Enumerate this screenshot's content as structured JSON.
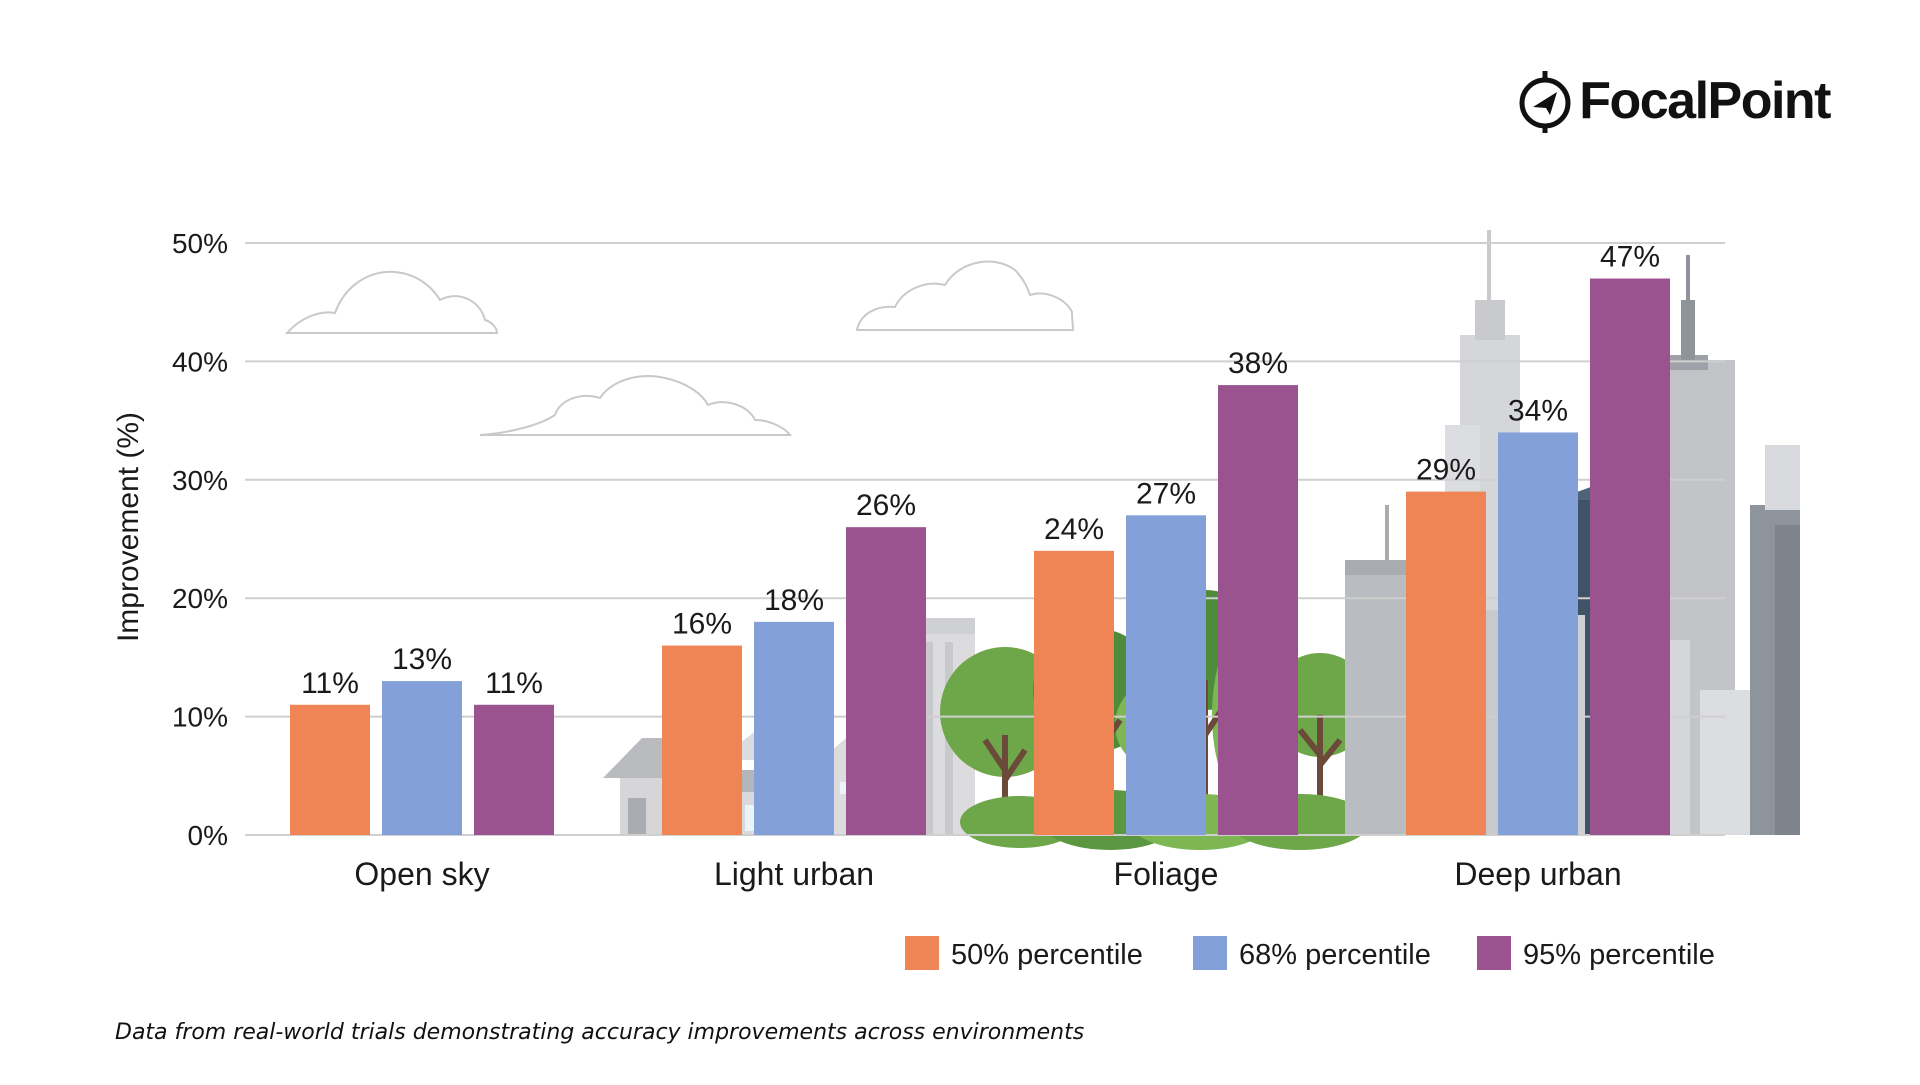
{
  "brand": {
    "name": "FocalPoint",
    "icon": "compass-icon"
  },
  "caption": "Data from real-world trials demonstrating accuracy improvements across environments",
  "colors": {
    "p50": "#ef8454",
    "p68": "#83a1d8",
    "p95": "#9b538f",
    "grid": "#cfcfcf",
    "text": "#1a1a1a"
  },
  "chart_data": {
    "type": "bar",
    "title": "",
    "xlabel": "",
    "ylabel": "Improvement (%)",
    "ylim": [
      0,
      50
    ],
    "yticks": [
      0,
      10,
      20,
      30,
      40,
      50
    ],
    "ytick_labels": [
      "0%",
      "10%",
      "20%",
      "30%",
      "40%",
      "50%"
    ],
    "grid": true,
    "legend_position": "bottom-right",
    "categories": [
      "Open sky",
      "Light urban",
      "Foliage",
      "Deep urban"
    ],
    "series": [
      {
        "name": "50% percentile",
        "key": "p50",
        "values": [
          11,
          16,
          24,
          29
        ],
        "labels": [
          "11%",
          "16%",
          "24%",
          "29%"
        ]
      },
      {
        "name": "68% percentile",
        "key": "p68",
        "values": [
          13,
          18,
          27,
          34
        ],
        "labels": [
          "13%",
          "18%",
          "27%",
          "34%"
        ]
      },
      {
        "name": "95% percentile",
        "key": "p95",
        "values": [
          11,
          26,
          38,
          47
        ],
        "labels": [
          "11%",
          "26%",
          "38%",
          "47%"
        ]
      }
    ]
  }
}
